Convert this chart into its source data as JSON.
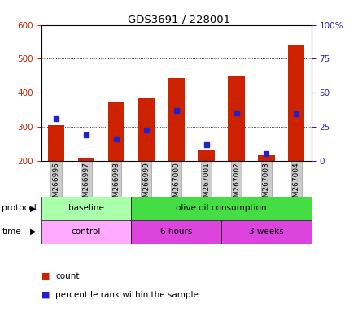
{
  "title": "GDS3691 / 228001",
  "samples": [
    "GSM266996",
    "GSM266997",
    "GSM266998",
    "GSM266999",
    "GSM267000",
    "GSM267001",
    "GSM267002",
    "GSM267003",
    "GSM267004"
  ],
  "bar_bottom": 200,
  "bar_tops": [
    305,
    208,
    375,
    385,
    443,
    234,
    450,
    215,
    540
  ],
  "percentile_values": [
    325,
    275,
    265,
    290,
    348,
    248,
    340,
    222,
    338
  ],
  "left_ylim": [
    200,
    600
  ],
  "left_yticks": [
    200,
    300,
    400,
    500,
    600
  ],
  "right_ylim": [
    0,
    100
  ],
  "right_yticks": [
    0,
    25,
    50,
    75,
    100
  ],
  "right_yticklabels": [
    "0",
    "25",
    "50",
    "75",
    "100%"
  ],
  "bar_color": "#cc2200",
  "point_color": "#2222cc",
  "protocol_baseline_color": "#aaffaa",
  "protocol_olive_color": "#44dd44",
  "time_control_color": "#ffaaff",
  "time_hours_color": "#dd44dd",
  "time_weeks_color": "#dd44dd",
  "tick_color_left": "#cc2200",
  "tick_color_right": "#2222cc",
  "legend_count_color": "#cc2200",
  "legend_point_color": "#2222cc",
  "xtick_bg_color": "#cccccc",
  "background_color": "#ffffff"
}
